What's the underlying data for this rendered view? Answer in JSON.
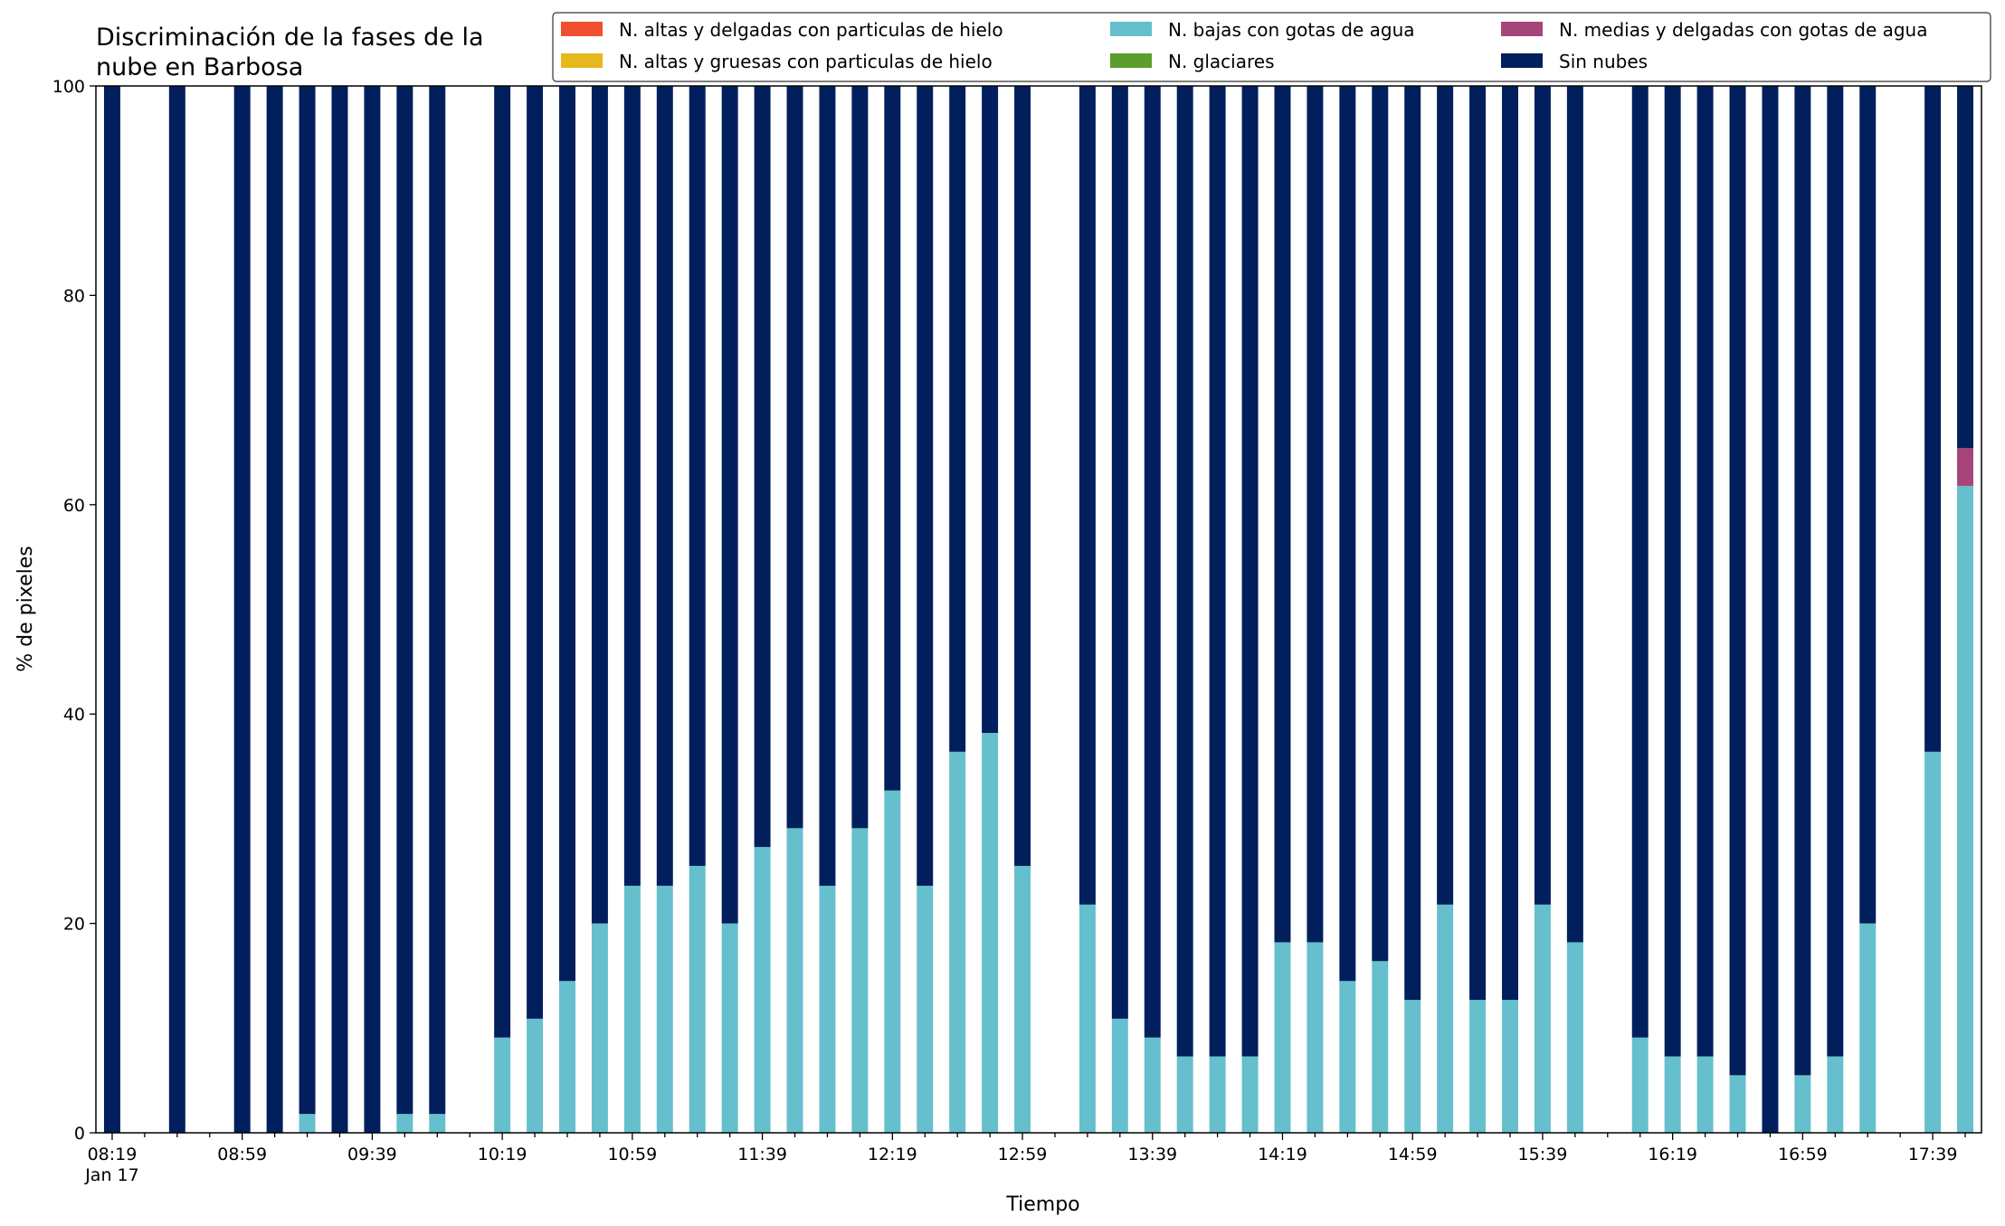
{
  "chart_data": {
    "type": "bar",
    "stacked": true,
    "title_lines": [
      "Discriminación de la fases de la",
      "nube en Barbosa"
    ],
    "xlabel": "Tiempo",
    "ylabel": "% de pixeles",
    "ylim": [
      0,
      100
    ],
    "yticks": [
      0,
      20,
      40,
      60,
      80,
      100
    ],
    "xrange_minutes": [
      "08:14",
      "17:54"
    ],
    "bar_interval_minutes": 10,
    "xticks": [
      {
        "time": "08:19",
        "label": "08:19",
        "sublabel": "Jan 17"
      },
      {
        "time": "08:59",
        "label": "08:59"
      },
      {
        "time": "09:39",
        "label": "09:39"
      },
      {
        "time": "10:19",
        "label": "10:19"
      },
      {
        "time": "10:59",
        "label": "10:59"
      },
      {
        "time": "11:39",
        "label": "11:39"
      },
      {
        "time": "12:19",
        "label": "12:19"
      },
      {
        "time": "12:59",
        "label": "12:59"
      },
      {
        "time": "13:39",
        "label": "13:39"
      },
      {
        "time": "14:19",
        "label": "14:19"
      },
      {
        "time": "14:59",
        "label": "14:59"
      },
      {
        "time": "15:39",
        "label": "15:39"
      },
      {
        "time": "16:19",
        "label": "16:19"
      },
      {
        "time": "16:59",
        "label": "16:59"
      },
      {
        "time": "17:39",
        "label": "17:39"
      }
    ],
    "legend": {
      "placement": "top-right",
      "columns": 3,
      "entries": [
        {
          "name": "N. altas y delgadas con particulas de hielo",
          "color": "#f0502e"
        },
        {
          "name": "N. altas y gruesas con particulas de hielo",
          "color": "#e6b81e"
        },
        {
          "name": "N. bajas con gotas de agua",
          "color": "#66bfcc"
        },
        {
          "name": "N. glaciares",
          "color": "#5c9e2e"
        },
        {
          "name": "N. medias y delgadas con gotas de agua",
          "color": "#a6457a"
        },
        {
          "name": "Sin nubes",
          "color": "#001f5c"
        }
      ]
    },
    "bars": [
      {
        "time": "08:19",
        "bajas": 0,
        "medias": 0,
        "sin_nubes": 100
      },
      {
        "time": "08:39",
        "bajas": 0,
        "medias": 0,
        "sin_nubes": 100
      },
      {
        "time": "08:59",
        "bajas": 0,
        "medias": 0,
        "sin_nubes": 100
      },
      {
        "time": "09:09",
        "bajas": 0,
        "medias": 0,
        "sin_nubes": 100
      },
      {
        "time": "09:19",
        "bajas": 1.8,
        "medias": 0,
        "sin_nubes": 98.2
      },
      {
        "time": "09:29",
        "bajas": 0,
        "medias": 0,
        "sin_nubes": 100
      },
      {
        "time": "09:39",
        "bajas": 0,
        "medias": 0,
        "sin_nubes": 100
      },
      {
        "time": "09:49",
        "bajas": 1.8,
        "medias": 0,
        "sin_nubes": 98.2
      },
      {
        "time": "09:59",
        "bajas": 1.8,
        "medias": 0,
        "sin_nubes": 98.2
      },
      {
        "time": "10:19",
        "bajas": 9.1,
        "medias": 0,
        "sin_nubes": 90.9
      },
      {
        "time": "10:29",
        "bajas": 10.9,
        "medias": 0,
        "sin_nubes": 89.1
      },
      {
        "time": "10:39",
        "bajas": 14.5,
        "medias": 0,
        "sin_nubes": 85.5
      },
      {
        "time": "10:49",
        "bajas": 20.0,
        "medias": 0,
        "sin_nubes": 80.0
      },
      {
        "time": "10:59",
        "bajas": 23.6,
        "medias": 0,
        "sin_nubes": 76.4
      },
      {
        "time": "11:09",
        "bajas": 23.6,
        "medias": 0,
        "sin_nubes": 76.4
      },
      {
        "time": "11:19",
        "bajas": 25.5,
        "medias": 0,
        "sin_nubes": 74.5
      },
      {
        "time": "11:29",
        "bajas": 20.0,
        "medias": 0,
        "sin_nubes": 80.0
      },
      {
        "time": "11:39",
        "bajas": 27.3,
        "medias": 0,
        "sin_nubes": 72.7
      },
      {
        "time": "11:49",
        "bajas": 29.1,
        "medias": 0,
        "sin_nubes": 70.9
      },
      {
        "time": "11:59",
        "bajas": 23.6,
        "medias": 0,
        "sin_nubes": 76.4
      },
      {
        "time": "12:09",
        "bajas": 29.1,
        "medias": 0,
        "sin_nubes": 70.9
      },
      {
        "time": "12:19",
        "bajas": 32.7,
        "medias": 0,
        "sin_nubes": 67.3
      },
      {
        "time": "12:29",
        "bajas": 23.6,
        "medias": 0,
        "sin_nubes": 76.4
      },
      {
        "time": "12:39",
        "bajas": 36.4,
        "medias": 0,
        "sin_nubes": 63.6
      },
      {
        "time": "12:49",
        "bajas": 38.2,
        "medias": 0,
        "sin_nubes": 61.8
      },
      {
        "time": "12:59",
        "bajas": 25.5,
        "medias": 0,
        "sin_nubes": 74.5
      },
      {
        "time": "13:19",
        "bajas": 21.8,
        "medias": 0,
        "sin_nubes": 78.2
      },
      {
        "time": "13:29",
        "bajas": 10.9,
        "medias": 0,
        "sin_nubes": 89.1
      },
      {
        "time": "13:39",
        "bajas": 9.1,
        "medias": 0,
        "sin_nubes": 90.9
      },
      {
        "time": "13:49",
        "bajas": 7.3,
        "medias": 0,
        "sin_nubes": 92.7
      },
      {
        "time": "13:59",
        "bajas": 7.3,
        "medias": 0,
        "sin_nubes": 92.7
      },
      {
        "time": "14:09",
        "bajas": 7.3,
        "medias": 0,
        "sin_nubes": 92.7
      },
      {
        "time": "14:19",
        "bajas": 18.2,
        "medias": 0,
        "sin_nubes": 81.8
      },
      {
        "time": "14:29",
        "bajas": 18.2,
        "medias": 0,
        "sin_nubes": 81.8
      },
      {
        "time": "14:39",
        "bajas": 14.5,
        "medias": 0,
        "sin_nubes": 85.5
      },
      {
        "time": "14:49",
        "bajas": 16.4,
        "medias": 0,
        "sin_nubes": 83.6
      },
      {
        "time": "14:59",
        "bajas": 12.7,
        "medias": 0,
        "sin_nubes": 87.3
      },
      {
        "time": "15:09",
        "bajas": 21.8,
        "medias": 0,
        "sin_nubes": 78.2
      },
      {
        "time": "15:19",
        "bajas": 12.7,
        "medias": 0,
        "sin_nubes": 87.3
      },
      {
        "time": "15:29",
        "bajas": 12.7,
        "medias": 0,
        "sin_nubes": 87.3
      },
      {
        "time": "15:39",
        "bajas": 21.8,
        "medias": 0,
        "sin_nubes": 78.2
      },
      {
        "time": "15:49",
        "bajas": 18.2,
        "medias": 0,
        "sin_nubes": 81.8
      },
      {
        "time": "16:09",
        "bajas": 9.1,
        "medias": 0,
        "sin_nubes": 90.9
      },
      {
        "time": "16:19",
        "bajas": 7.3,
        "medias": 0,
        "sin_nubes": 92.7
      },
      {
        "time": "16:29",
        "bajas": 7.3,
        "medias": 0,
        "sin_nubes": 92.7
      },
      {
        "time": "16:39",
        "bajas": 5.5,
        "medias": 0,
        "sin_nubes": 94.5
      },
      {
        "time": "16:49",
        "bajas": 0,
        "medias": 0,
        "sin_nubes": 100
      },
      {
        "time": "16:59",
        "bajas": 5.5,
        "medias": 0,
        "sin_nubes": 94.5
      },
      {
        "time": "17:09",
        "bajas": 7.3,
        "medias": 0,
        "sin_nubes": 92.7
      },
      {
        "time": "17:19",
        "bajas": 20.0,
        "medias": 0,
        "sin_nubes": 80.0
      },
      {
        "time": "17:39",
        "bajas": 36.4,
        "medias": 0,
        "sin_nubes": 63.6
      },
      {
        "time": "17:49",
        "bajas": 61.8,
        "medias": 3.6,
        "sin_nubes": 34.6
      }
    ]
  }
}
